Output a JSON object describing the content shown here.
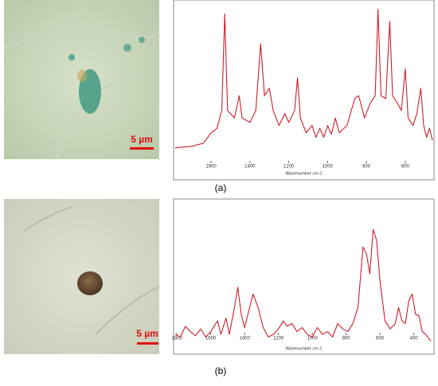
{
  "figure": {
    "panels": [
      {
        "label": "(a)",
        "scale_bar": "5 µm",
        "chart_data": {
          "type": "line",
          "x_label": "Wavenumber cm-1",
          "color": "#cc1f2b",
          "xlim": [
            1785,
            460
          ],
          "ylim": [
            0,
            100
          ],
          "xticks": [
            1600,
            1400,
            1200,
            1000,
            800,
            600
          ],
          "x": [
            1785,
            1700,
            1640,
            1600,
            1570,
            1545,
            1530,
            1515,
            1480,
            1455,
            1440,
            1400,
            1370,
            1345,
            1325,
            1300,
            1280,
            1250,
            1220,
            1200,
            1170,
            1155,
            1140,
            1110,
            1080,
            1060,
            1040,
            1020,
            1000,
            980,
            960,
            940,
            900,
            860,
            840,
            810,
            780,
            755,
            740,
            725,
            700,
            680,
            665,
            640,
            620,
            600,
            585,
            560,
            540,
            520,
            505,
            490,
            475,
            460
          ],
          "values": [
            5,
            6,
            8,
            15,
            18,
            30,
            95,
            30,
            25,
            40,
            25,
            22,
            30,
            75,
            40,
            45,
            30,
            20,
            28,
            22,
            30,
            52,
            25,
            15,
            20,
            12,
            18,
            12,
            20,
            14,
            25,
            15,
            20,
            38,
            40,
            25,
            35,
            40,
            98,
            40,
            38,
            90,
            40,
            35,
            30,
            58,
            25,
            20,
            28,
            45,
            20,
            12,
            18,
            10
          ]
        }
      },
      {
        "label": "(b)",
        "scale_bar": "5 µm",
        "chart_data": {
          "type": "line",
          "x_label": "Wavenumber cm-1",
          "color": "#cc1f2b",
          "xlim": [
            1810,
            290
          ],
          "ylim": [
            0,
            100
          ],
          "xticks": [
            1800,
            1600,
            1400,
            1200,
            1000,
            800,
            600,
            400
          ],
          "x": [
            1810,
            1780,
            1750,
            1720,
            1690,
            1660,
            1630,
            1600,
            1560,
            1540,
            1510,
            1490,
            1460,
            1440,
            1420,
            1400,
            1370,
            1350,
            1320,
            1290,
            1260,
            1230,
            1200,
            1170,
            1150,
            1120,
            1090,
            1060,
            1030,
            1000,
            970,
            940,
            910,
            880,
            850,
            820,
            790,
            760,
            730,
            700,
            680,
            660,
            640,
            620,
            600,
            570,
            540,
            510,
            490,
            470,
            450,
            430,
            410,
            390,
            370,
            350,
            330,
            300
          ],
          "values": [
            10,
            8,
            16,
            12,
            9,
            14,
            8,
            12,
            20,
            10,
            22,
            10,
            30,
            45,
            25,
            15,
            30,
            40,
            30,
            15,
            8,
            10,
            14,
            20,
            16,
            18,
            12,
            15,
            10,
            8,
            15,
            10,
            12,
            8,
            18,
            14,
            12,
            18,
            30,
            75,
            70,
            55,
            88,
            80,
            50,
            20,
            14,
            18,
            30,
            20,
            18,
            35,
            40,
            25,
            24,
            12,
            10,
            5
          ]
        }
      }
    ]
  }
}
